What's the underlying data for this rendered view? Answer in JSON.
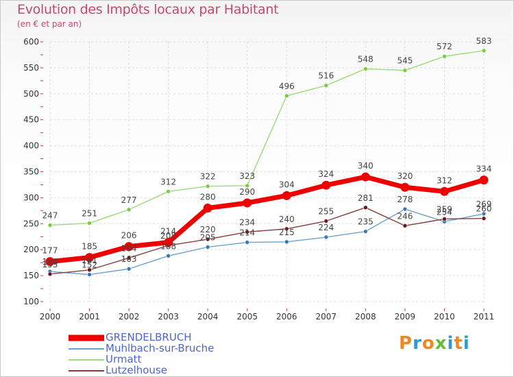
{
  "chart_data": {
    "type": "line",
    "title": "Evolution des Impôts locaux par Habitant",
    "subtitle": "(en € et par an)",
    "xlabel": "",
    "ylabel": "",
    "ylim": [
      100,
      600
    ],
    "yticks": [
      100,
      150,
      200,
      250,
      300,
      350,
      400,
      450,
      500,
      550,
      600
    ],
    "categories": [
      "2000",
      "2001",
      "2002",
      "2003",
      "2004",
      "2005",
      "2006",
      "2007",
      "2008",
      "2009",
      "2010",
      "2011"
    ],
    "grid": true,
    "legend_position": "bottom-left",
    "series": [
      {
        "name": "GRENDELBRUCH",
        "color": "#ee0000",
        "point_color": "#ee0000",
        "emphasis": true,
        "values": [
          177,
          185,
          206,
          214,
          280,
          290,
          304,
          324,
          340,
          320,
          312,
          334
        ]
      },
      {
        "name": "Muhlbach-sur-Bruche",
        "color": "#6aa0d0",
        "point_color": "#3a78b8",
        "emphasis": false,
        "values": [
          158,
          152,
          163,
          188,
          205,
          214,
          215,
          224,
          235,
          278,
          254,
          269
        ]
      },
      {
        "name": "Urmatt",
        "color": "#99dd77",
        "point_color": "#77cc44",
        "emphasis": false,
        "values": [
          247,
          251,
          277,
          312,
          322,
          323,
          496,
          516,
          548,
          545,
          572,
          583
        ]
      },
      {
        "name": "Lutzelhouse",
        "color": "#8a3a3a",
        "point_color": "#6a1818",
        "emphasis": false,
        "values": [
          153,
          161,
          184,
          208,
          220,
          234,
          240,
          255,
          281,
          246,
          259,
          260
        ]
      }
    ]
  },
  "logo": {
    "text": "Proxiti",
    "colors": [
      "#ee8822",
      "#3399cc",
      "#ee8822",
      "#66bb33",
      "#3399cc",
      "#ee8822",
      "#3399cc"
    ]
  }
}
